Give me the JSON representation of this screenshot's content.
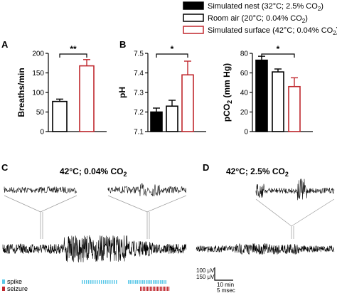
{
  "legend": {
    "items": [
      {
        "label": "Simulated nest (32°C; 2.5% CO",
        "sub": "2",
        "tail": ")",
        "fill": "#000000",
        "stroke": "#000000"
      },
      {
        "label": "Room air (20°C; 0.04% CO",
        "sub": "2",
        "tail": ")",
        "fill": "#ffffff",
        "stroke": "#000000"
      },
      {
        "label": "Simulated surface (42°C; 0.04% CO",
        "sub": "2",
        "tail": ")",
        "fill": "#ffffff",
        "stroke": "#c0272d"
      }
    ]
  },
  "panels": {
    "A": "A",
    "B": "B",
    "C": "C",
    "D": "D"
  },
  "traces": {
    "c_title": "42°C; 0.04% CO",
    "c_title_sub": "2",
    "d_title": "42°C; 2.5% CO",
    "d_title_sub": "2",
    "spike_label": "spike",
    "seizure_label": "seizure",
    "scale": {
      "v1": "100 μV",
      "v2": "150 μV",
      "t1": "10 min",
      "t2": "5 msec"
    },
    "colors": {
      "spike": "#5bc8e8",
      "seizure": "#c0272d"
    }
  },
  "chart_data": [
    {
      "type": "bar",
      "panel": "A",
      "categories": [
        "Room air (20°C; 0.04% CO2)",
        "Simulated surface (42°C; 0.04% CO2)"
      ],
      "values": [
        77,
        168
      ],
      "errors": [
        6,
        16
      ],
      "colors": [
        "#000000",
        "#c0272d"
      ],
      "fills": [
        "#ffffff",
        "#ffffff"
      ],
      "ylabel": "Breaths/min",
      "ylim": [
        0,
        200
      ],
      "yticks": [
        "0",
        "50",
        "100",
        "150",
        "200"
      ],
      "significance": "**"
    },
    {
      "type": "bar",
      "panel": "B",
      "categories": [
        "Simulated nest (32°C; 2.5% CO2)",
        "Room air (20°C; 0.04% CO2)",
        "Simulated surface (42°C; 0.04% CO2)"
      ],
      "values": [
        7.2,
        7.23,
        7.39
      ],
      "errors": [
        0.02,
        0.03,
        0.07
      ],
      "colors": [
        "#000000",
        "#000000",
        "#c0272d"
      ],
      "fills": [
        "#000000",
        "#ffffff",
        "#ffffff"
      ],
      "ylabel": "pH",
      "ylim": [
        7.1,
        7.5
      ],
      "yticks": [
        "7.1",
        "7.2",
        "7.3",
        "7.4",
        "7.5"
      ],
      "significance": "*"
    },
    {
      "type": "bar",
      "panel": "B-right",
      "categories": [
        "Simulated nest (32°C; 2.5% CO2)",
        "Room air (20°C; 0.04% CO2)",
        "Simulated surface (42°C; 0.04% CO2)"
      ],
      "values": [
        73,
        61,
        46
      ],
      "errors": [
        4,
        3,
        9
      ],
      "colors": [
        "#000000",
        "#000000",
        "#c0272d"
      ],
      "fills": [
        "#000000",
        "#ffffff",
        "#ffffff"
      ],
      "ylabel": "pCO",
      "ylabel_sub": "2",
      "ylabel_tail": " (mm Hg)",
      "ylim": [
        0,
        80
      ],
      "yticks": [
        "0",
        "20",
        "40",
        "60",
        "80"
      ],
      "significance": "*"
    }
  ]
}
